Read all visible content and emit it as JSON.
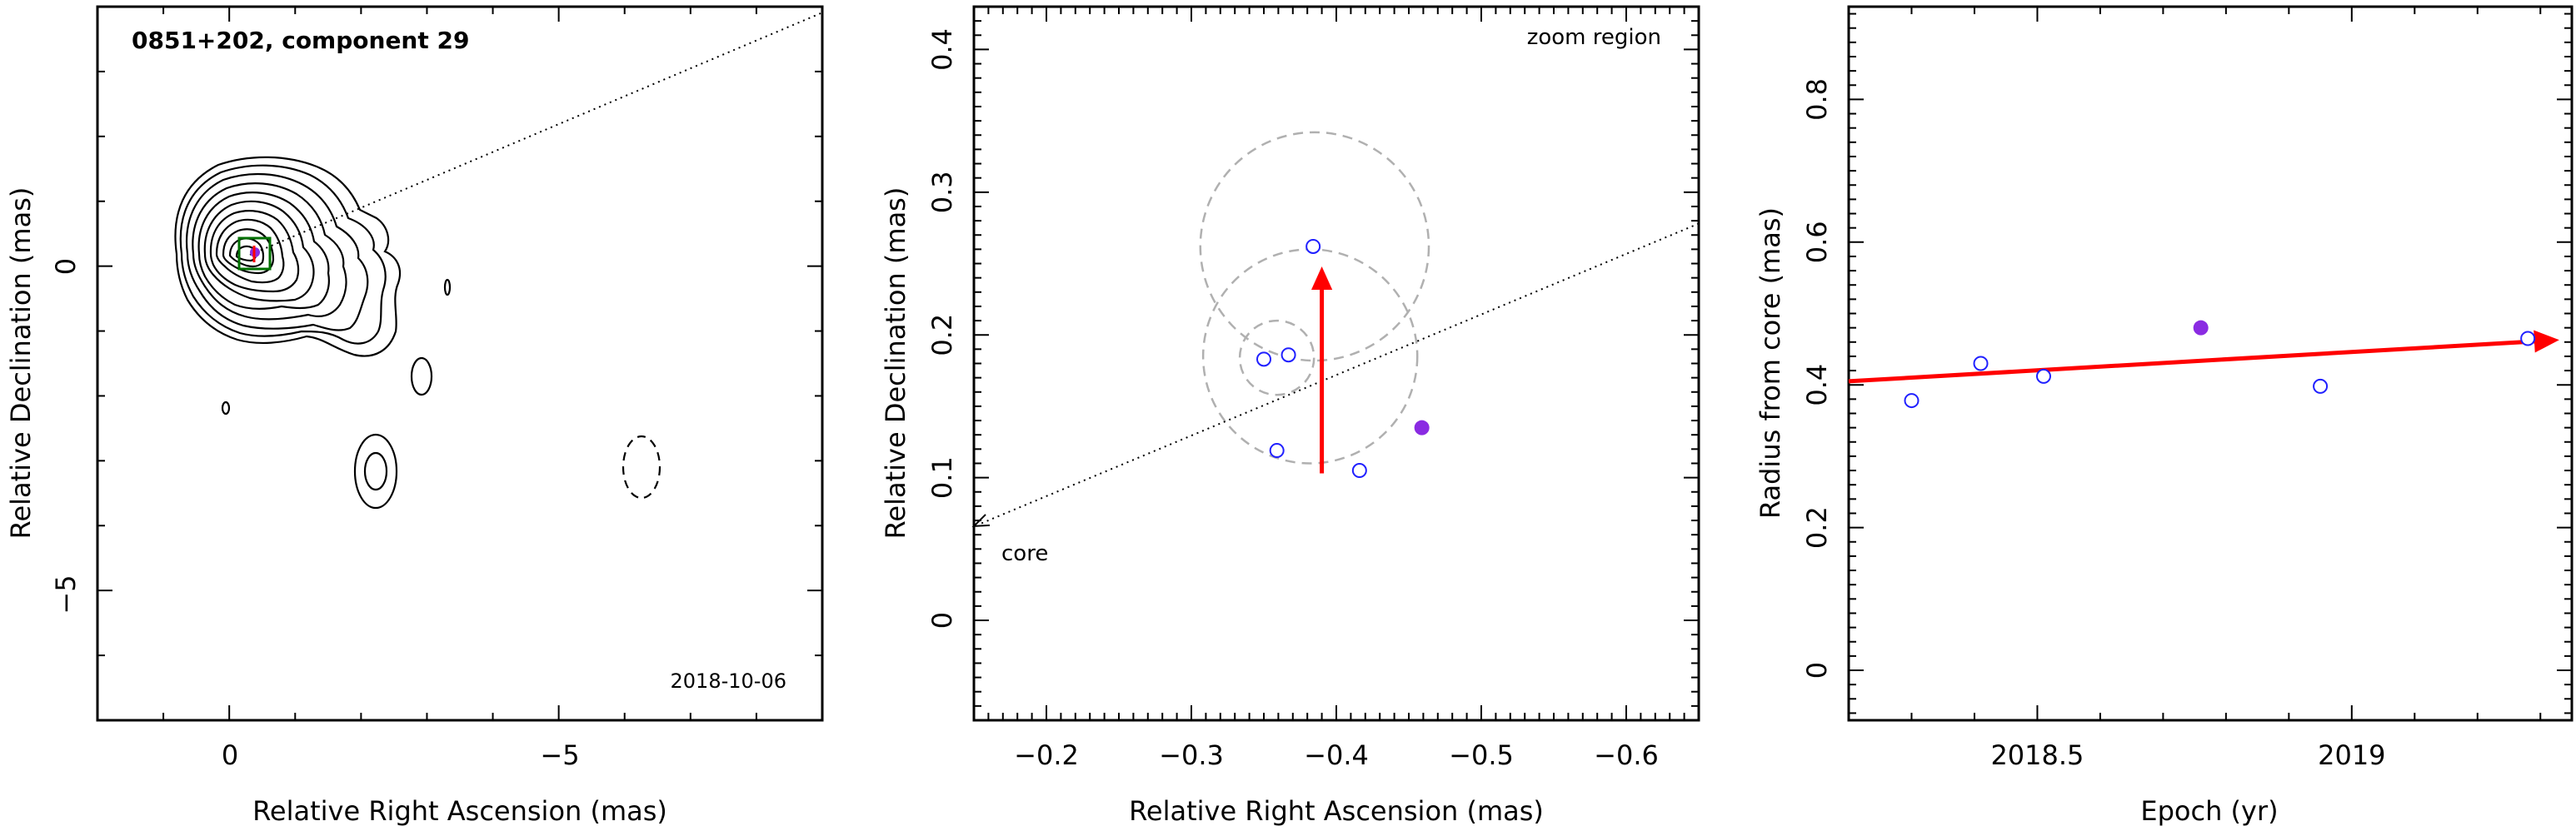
{
  "chart_data": [
    {
      "type": "contour",
      "title": "0851+202, component 29",
      "date_label": "2018-10-06",
      "xlabel": "Relative Right Ascension (mas)",
      "ylabel": "Relative Declination (mas)",
      "xlim": [
        2,
        -9
      ],
      "ylim": [
        -7,
        4
      ],
      "x_ticks": [
        "0",
        "−5"
      ],
      "y_ticks": [
        "0",
        "−5"
      ],
      "reverse_x": true,
      "core_position": [
        0,
        0
      ],
      "component_position": [
        0.4,
        0.15
      ]
    },
    {
      "type": "scatter",
      "annotation": "zoom region",
      "core_label": "core",
      "xlabel": "Relative Right Ascension (mas)",
      "ylabel": "Relative Declination (mas)",
      "xlim": [
        -0.15,
        -0.65
      ],
      "ylim": [
        -0.07,
        0.43
      ],
      "x_ticks": [
        "−0.2",
        "−0.3",
        "−0.4",
        "−0.5",
        "−0.6"
      ],
      "y_ticks": [
        "0",
        "0.1",
        "0.2",
        "0.3",
        "0.4"
      ],
      "reverse_x": true,
      "points": [
        {
          "x": -0.35,
          "y": 0.183
        },
        {
          "x": -0.367,
          "y": 0.186
        },
        {
          "x": -0.384,
          "y": 0.262
        },
        {
          "x": -0.359,
          "y": 0.119
        },
        {
          "x": -0.416,
          "y": 0.105
        }
      ],
      "highlight_point": {
        "x": -0.459,
        "y": 0.135
      },
      "circles": [
        {
          "cx": -0.385,
          "cy": 0.262,
          "r": 0.08
        },
        {
          "cx": -0.382,
          "cy": 0.185,
          "r": 0.075
        },
        {
          "cx": -0.359,
          "cy": 0.184,
          "r": 0.026
        }
      ],
      "motion_arrow": {
        "from": [
          -0.39,
          0.103
        ],
        "to": [
          -0.39,
          0.248
        ]
      },
      "core_direction_line": {
        "from": [
          -0.65,
          0.278
        ],
        "to": [
          -0.15,
          0.066
        ]
      }
    },
    {
      "type": "scatter",
      "xlabel": "Epoch (yr)",
      "ylabel": "Radius from core (mas)",
      "xlim": [
        2018.2,
        2019.35
      ],
      "ylim": [
        -0.07,
        0.93
      ],
      "x_ticks": [
        "2018.5",
        "2019"
      ],
      "y_ticks": [
        "0",
        "0.2",
        "0.4",
        "0.6",
        "0.8"
      ],
      "points": [
        {
          "x": 2018.3,
          "y": 0.378
        },
        {
          "x": 2018.41,
          "y": 0.43
        },
        {
          "x": 2018.51,
          "y": 0.412
        },
        {
          "x": 2018.95,
          "y": 0.398
        },
        {
          "x": 2019.28,
          "y": 0.465
        }
      ],
      "highlight_point": {
        "x": 2018.76,
        "y": 0.48
      },
      "trend_arrow": {
        "from": [
          2018.2,
          0.405
        ],
        "to": [
          2019.33,
          0.463
        ]
      }
    }
  ],
  "colors": {
    "open_point": "#2020ff",
    "highlight": "#8a2be2",
    "arrow": "#ff0000",
    "circles": "#b0b0b0",
    "box": "#007000"
  }
}
